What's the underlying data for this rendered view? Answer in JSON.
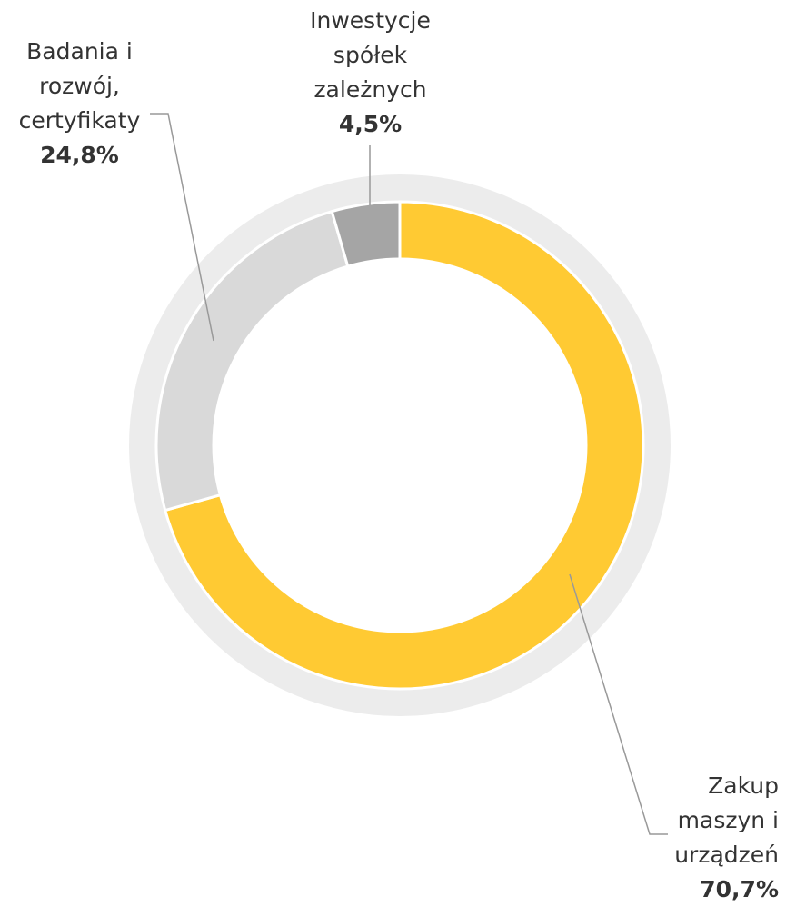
{
  "chart_data": {
    "type": "donut",
    "categories": [
      "Zakup maszyn i urządzeń",
      "Badania i rozwój, certyfikaty",
      "Inwestycje spółek zależnych"
    ],
    "values": [
      70.7,
      24.8,
      4.5
    ],
    "value_labels": [
      "70,7%",
      "24,8%",
      "4,5%"
    ],
    "colors": [
      "#ffca33",
      "#d9d9d9",
      "#a5a5a5"
    ]
  }
}
